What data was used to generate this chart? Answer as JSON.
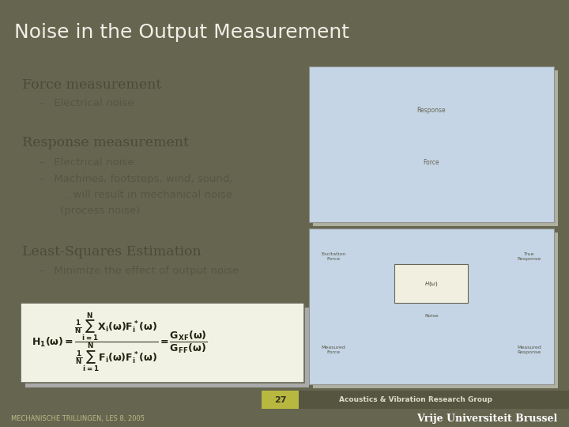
{
  "title": "Noise in the Output Measurement",
  "title_bg_color": "#666650",
  "title_text_color": "#f0f0e8",
  "slide_bg_color": "#666650",
  "content_bg_color": "#e8e8d8",
  "footer_bg_color": "#8a8a50",
  "footer_dark_color": "#555540",
  "footer_number_color": "#b8b840",
  "slide_number": "27",
  "footer_left": "MECHANISCHE TRILLINGEN, LES 8, 2005",
  "footer_right": "Vrije Universiteit Brussel",
  "footer_center": "Acoustics & Vibration Research Group",
  "section1_title": "Force measurement",
  "section1_bullets": [
    "Electrical noise"
  ],
  "section2_title": "Response measurement",
  "section2_bullets": [
    "Electrical noise",
    "Machines, footsteps, wind, sound,\n... will result in mechanical noise\n(process noise)"
  ],
  "section3_title": "Least-Squares Estimation",
  "section3_bullets": [
    "Minimize the effect of output noise"
  ],
  "formula_box_color": "#f2f2e4",
  "formula_shadow_color": "#aaaaaa",
  "formula_box_border": "#666655",
  "text_color": "#4a4a3a",
  "bullet_color": "#555545",
  "bullet_dash": "–",
  "img_bg_color": "#c5d5e5",
  "img_border_color": "#909090"
}
